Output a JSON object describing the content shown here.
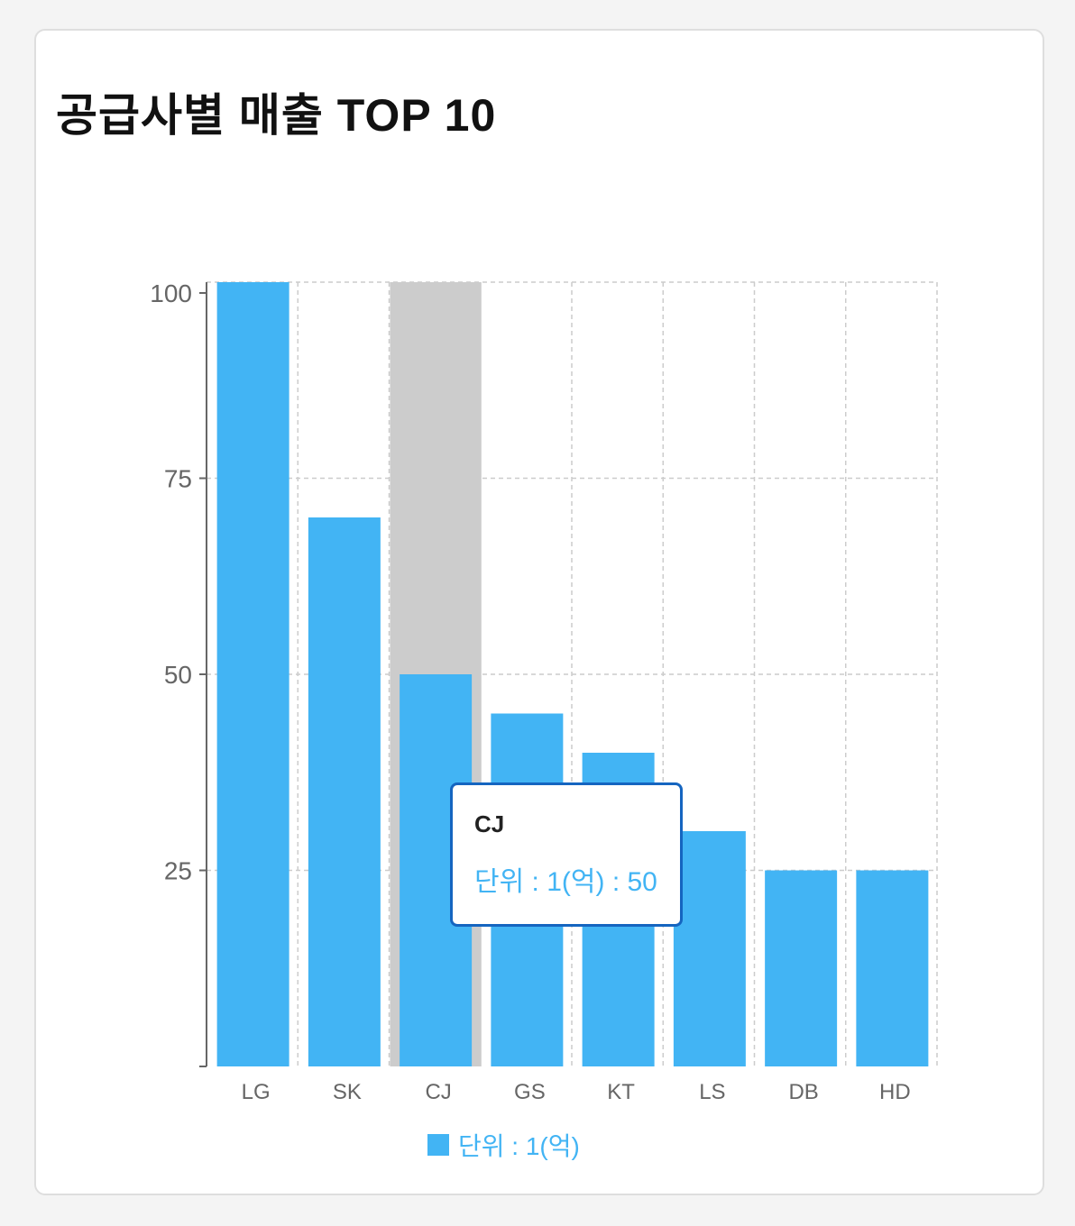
{
  "colors": {
    "bar": "#42b4f4",
    "active_band": "#cccccc",
    "grid": "#cccccc",
    "axis": "#666666",
    "tooltip_border": "#1565c0"
  },
  "card": {
    "title": "공급사별 매출 TOP 10"
  },
  "chart_data": {
    "type": "bar",
    "title": "공급사별 매출 TOP 10",
    "categories": [
      "LG",
      "SK",
      "CJ",
      "GS",
      "KT",
      "LS",
      "DB",
      "HD"
    ],
    "series": [
      {
        "name": "단위 : 1(억)",
        "values": [
          100,
          70,
          50,
          45,
          40,
          30,
          25,
          25
        ]
      }
    ],
    "ylim": [
      0,
      100
    ],
    "y_ticks": [
      25,
      50,
      75,
      100
    ],
    "grid": true,
    "legend": "bottom",
    "active_category": "CJ"
  },
  "tooltip": {
    "title": "CJ",
    "series_label": "단위 : 1(억)",
    "separator": " : ",
    "value": "50"
  },
  "legend": {
    "label": "단위 : 1(억)"
  }
}
